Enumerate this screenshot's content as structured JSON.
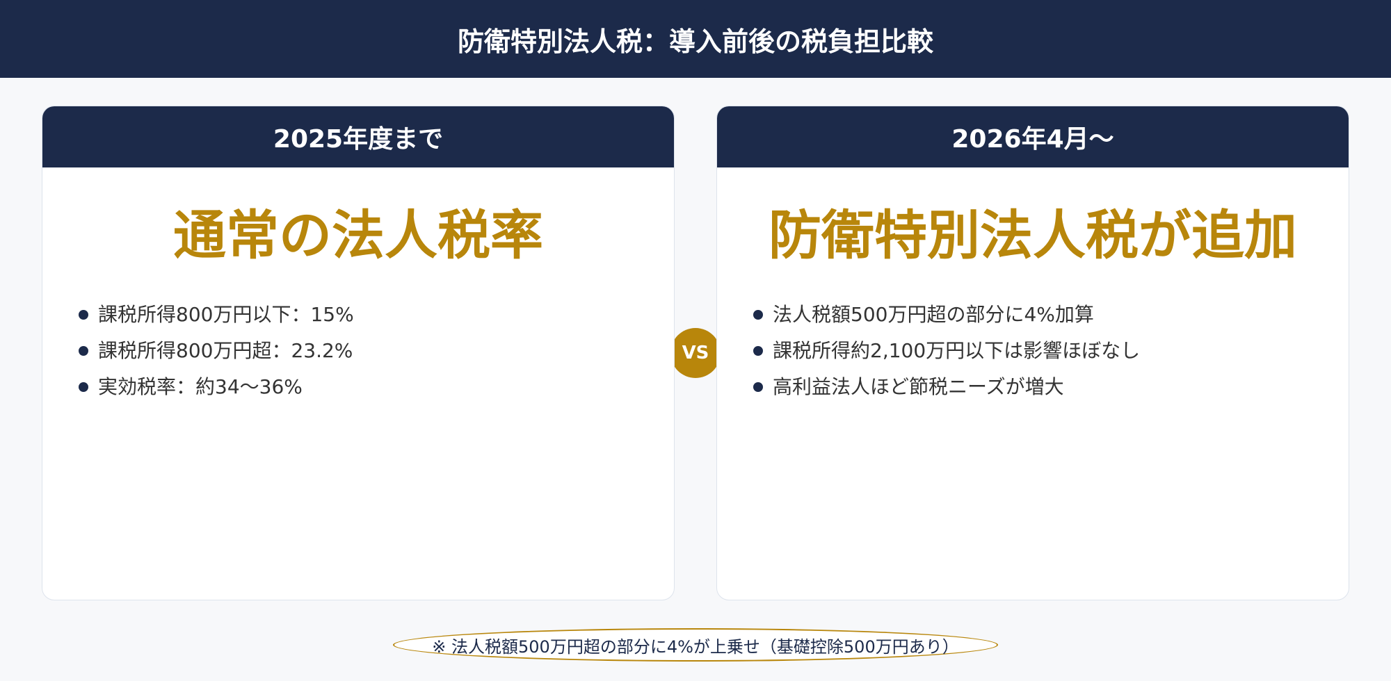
{
  "header": {
    "title": "防衛特別法人税：導入前後の税負担比較"
  },
  "colors": {
    "navy": "#1c2a4a",
    "gold": "#b8860b",
    "background": "#f7f8fa"
  },
  "vs_label": "VS",
  "cards": [
    {
      "period": "2025年度まで",
      "headline": "通常の法人税率",
      "bullets": [
        "課税所得800万円以下：15%",
        "課税所得800万円超：23.2%",
        "実効税率：約34〜36%"
      ]
    },
    {
      "period": "2026年4月〜",
      "headline": "防衛特別法人税が追加",
      "bullets": [
        "法人税額500万円超の部分に4%加算",
        "課税所得約2,100万円以下は影響ほぼなし",
        "高利益法人ほど節税ニーズが増大"
      ]
    }
  ],
  "footnote": "※ 法人税額500万円超の部分に4%が上乗せ（基礎控除500万円あり）"
}
